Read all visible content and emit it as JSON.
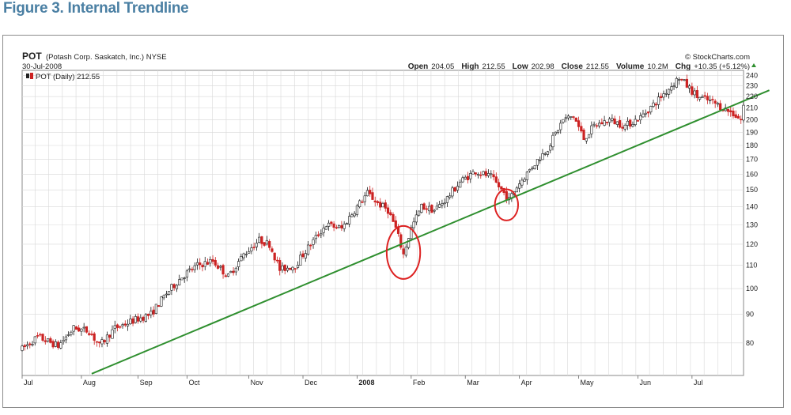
{
  "figure": {
    "title": "Figure 3. Internal Trendline"
  },
  "chart_header": {
    "symbol": "POT",
    "company": "(Potash Corp. Saskatch, Inc.) NYSE",
    "date": "30-Jul-2008",
    "watermark": "© StockCharts.com",
    "legend": "POT (Daily) 212.55",
    "stats": [
      {
        "label": "Open",
        "value": "204.05"
      },
      {
        "label": "High",
        "value": "212.55"
      },
      {
        "label": "Low",
        "value": "202.98"
      },
      {
        "label": "Close",
        "value": "212.55"
      },
      {
        "label": "Volume",
        "value": "10.2M"
      },
      {
        "label": "Chg",
        "value": "+10.35 (+5.12%)"
      }
    ]
  },
  "colors": {
    "up": "#1a1a1a",
    "down": "#cc2222",
    "trendline": "#2f8f2f",
    "circle": "#dd2222",
    "grid": "#d8d8d8",
    "title": "#4a7fa3"
  },
  "chart_data": {
    "type": "candlestick",
    "yscale": "log",
    "ylim": [
      70,
      245
    ],
    "yticks": [
      80,
      90,
      100,
      110,
      120,
      130,
      140,
      150,
      160,
      170,
      180,
      190,
      200,
      210,
      220,
      230,
      240
    ],
    "xlim": [
      0,
      280
    ],
    "months": [
      {
        "label": "Jul",
        "pos": 0
      },
      {
        "label": "Aug",
        "pos": 23
      },
      {
        "label": "Sep",
        "pos": 45
      },
      {
        "label": "Oct",
        "pos": 64
      },
      {
        "label": "Nov",
        "pos": 88
      },
      {
        "label": "Dec",
        "pos": 109
      },
      {
        "label": "2008",
        "pos": 130,
        "bold": true
      },
      {
        "label": "Feb",
        "pos": 151
      },
      {
        "label": "Mar",
        "pos": 172
      },
      {
        "label": "Apr",
        "pos": 193
      },
      {
        "label": "May",
        "pos": 216
      },
      {
        "label": "Jun",
        "pos": 239
      },
      {
        "label": "Jul",
        "pos": 260
      }
    ],
    "anchors": [
      [
        0,
        78
      ],
      [
        6,
        82
      ],
      [
        14,
        79
      ],
      [
        20,
        85
      ],
      [
        26,
        84
      ],
      [
        30,
        79
      ],
      [
        36,
        85
      ],
      [
        44,
        88
      ],
      [
        50,
        90
      ],
      [
        56,
        98
      ],
      [
        62,
        105
      ],
      [
        68,
        110
      ],
      [
        74,
        112
      ],
      [
        80,
        105
      ],
      [
        86,
        115
      ],
      [
        92,
        122
      ],
      [
        96,
        120
      ],
      [
        100,
        108
      ],
      [
        106,
        110
      ],
      [
        112,
        120
      ],
      [
        118,
        130
      ],
      [
        124,
        128
      ],
      [
        130,
        140
      ],
      [
        134,
        148
      ],
      [
        138,
        142
      ],
      [
        142,
        138
      ],
      [
        145,
        128
      ],
      [
        148,
        115
      ],
      [
        151,
        128
      ],
      [
        155,
        140
      ],
      [
        160,
        138
      ],
      [
        165,
        145
      ],
      [
        170,
        155
      ],
      [
        176,
        162
      ],
      [
        182,
        158
      ],
      [
        186,
        150
      ],
      [
        189,
        144
      ],
      [
        192,
        152
      ],
      [
        198,
        165
      ],
      [
        204,
        178
      ],
      [
        210,
        200
      ],
      [
        214,
        203
      ],
      [
        218,
        185
      ],
      [
        222,
        195
      ],
      [
        228,
        200
      ],
      [
        234,
        195
      ],
      [
        240,
        202
      ],
      [
        246,
        215
      ],
      [
        252,
        230
      ],
      [
        255,
        238
      ],
      [
        258,
        230
      ],
      [
        262,
        220
      ],
      [
        268,
        215
      ],
      [
        272,
        210
      ],
      [
        276,
        205
      ],
      [
        279,
        200
      ],
      [
        280,
        212
      ]
    ],
    "trendline": {
      "x1": 27,
      "y1": 70.5,
      "x2": 280,
      "y2": 216
    },
    "circles": [
      {
        "cx": 148,
        "cy": 116,
        "rx": 6.5,
        "ry_low": 103,
        "ry_high": 128
      },
      {
        "cx": 188,
        "cy": 141,
        "rx": 4.5,
        "ry_low": 132,
        "ry_high": 150
      }
    ]
  }
}
